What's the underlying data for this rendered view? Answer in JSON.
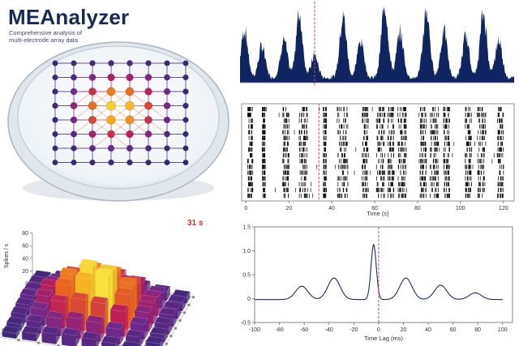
{
  "app": {
    "title": "MEAnalyzer",
    "subtitle_line1": "Comprehensive analysis of",
    "subtitle_line2": "multi-electrode array data"
  },
  "colors": {
    "accent": "#182b55",
    "marker": "#e0474c",
    "navy": "#0f2460",
    "grid": "#bfbfbf"
  },
  "electrode_grid": {
    "rows": 8,
    "cols": 8,
    "activity": [
      [
        0.05,
        0.08,
        0.12,
        0.16,
        0.16,
        0.12,
        0.08,
        0.05
      ],
      [
        0.08,
        0.18,
        0.35,
        0.45,
        0.45,
        0.35,
        0.18,
        0.08
      ],
      [
        0.1,
        0.3,
        0.55,
        0.75,
        0.72,
        0.5,
        0.28,
        0.1
      ],
      [
        0.12,
        0.38,
        0.72,
        0.95,
        0.9,
        0.62,
        0.32,
        0.1
      ],
      [
        0.1,
        0.32,
        0.62,
        0.85,
        0.8,
        0.55,
        0.28,
        0.08
      ],
      [
        0.08,
        0.22,
        0.42,
        0.55,
        0.5,
        0.35,
        0.18,
        0.06
      ],
      [
        0.05,
        0.12,
        0.22,
        0.28,
        0.25,
        0.18,
        0.1,
        0.05
      ],
      [
        0.04,
        0.06,
        0.1,
        0.12,
        0.1,
        0.08,
        0.06,
        0.04
      ]
    ]
  },
  "population_rate": {
    "xlim": [
      0,
      125
    ],
    "marker_x": 34,
    "peaks": [
      {
        "t": 2,
        "h": 0.65
      },
      {
        "t": 10,
        "h": 0.42
      },
      {
        "t": 20,
        "h": 0.5
      },
      {
        "t": 27,
        "h": 0.85
      },
      {
        "t": 34,
        "h": 0.3
      },
      {
        "t": 47,
        "h": 0.82
      },
      {
        "t": 55,
        "h": 0.5
      },
      {
        "t": 66,
        "h": 0.98
      },
      {
        "t": 73,
        "h": 0.6
      },
      {
        "t": 85,
        "h": 0.9
      },
      {
        "t": 93,
        "h": 0.62
      },
      {
        "t": 103,
        "h": 0.55
      },
      {
        "t": 111,
        "h": 0.85
      },
      {
        "t": 118,
        "h": 0.5
      }
    ]
  },
  "raster": {
    "xlabel": "Time (s)",
    "xticks": [
      "0",
      "20",
      "40",
      "60",
      "80",
      "100",
      "120"
    ],
    "xtick_values": [
      0,
      20,
      40,
      60,
      80,
      100,
      120
    ],
    "xlim": [
      -2,
      125
    ],
    "marker_x": 34,
    "rows": 16,
    "bursts": [
      {
        "t": 1.5,
        "w": 2.5
      },
      {
        "t": 8,
        "w": 1.5
      },
      {
        "t": 18,
        "w": 3
      },
      {
        "t": 26,
        "w": 4
      },
      {
        "t": 36.5,
        "w": 1.5
      },
      {
        "t": 44,
        "w": 5
      },
      {
        "t": 55,
        "w": 3
      },
      {
        "t": 62,
        "w": 4
      },
      {
        "t": 67,
        "w": 3
      },
      {
        "t": 72,
        "w": 4
      },
      {
        "t": 82,
        "w": 3
      },
      {
        "t": 87,
        "w": 4
      },
      {
        "t": 93,
        "w": 3
      },
      {
        "t": 103,
        "w": 3
      },
      {
        "t": 109,
        "w": 4
      },
      {
        "t": 118,
        "w": 3
      }
    ]
  },
  "bar3d": {
    "ylabel": "Spikes / s",
    "yticks": [
      "0",
      "20",
      "40",
      "60",
      "80"
    ],
    "ytick_values": [
      0,
      20,
      40,
      60,
      80
    ],
    "ylim": [
      0,
      80
    ],
    "time_badge": "31 s",
    "grid_values": [
      [
        10,
        14,
        18,
        20,
        22,
        18,
        14,
        10
      ],
      [
        14,
        22,
        34,
        40,
        44,
        36,
        24,
        14
      ],
      [
        16,
        30,
        50,
        62,
        60,
        48,
        30,
        16
      ],
      [
        18,
        38,
        60,
        78,
        74,
        58,
        34,
        18
      ],
      [
        16,
        34,
        56,
        70,
        80,
        54,
        30,
        16
      ],
      [
        14,
        26,
        42,
        50,
        48,
        40,
        24,
        12
      ],
      [
        10,
        18,
        28,
        32,
        30,
        24,
        16,
        10
      ],
      [
        8,
        12,
        16,
        18,
        16,
        14,
        10,
        8
      ]
    ]
  },
  "xcorr": {
    "xlabel": "Time Lag (ms)",
    "xticks": [
      "-100",
      "-80",
      "-60",
      "-40",
      "-20",
      "0",
      "20",
      "40",
      "60",
      "80",
      "100"
    ],
    "xtick_values": [
      -100,
      -80,
      -60,
      -40,
      -20,
      0,
      20,
      40,
      60,
      80,
      100
    ],
    "yticks": [
      "-0.5",
      "0",
      "0.5",
      "1.0",
      "1.5"
    ],
    "ytick_values": [
      -0.5,
      0,
      0.5,
      1.0,
      1.5
    ],
    "xlim": [
      -100,
      108
    ],
    "ylim": [
      -0.5,
      1.5
    ],
    "marker_x": 0,
    "peaks": [
      {
        "lag": -4,
        "value": 1.15
      },
      {
        "lag": -62,
        "value": 0.28
      },
      {
        "lag": -36,
        "value": 0.45
      },
      {
        "lag": 22,
        "value": 0.45
      },
      {
        "lag": 50,
        "value": 0.3
      },
      {
        "lag": 78,
        "value": 0.14
      }
    ]
  }
}
